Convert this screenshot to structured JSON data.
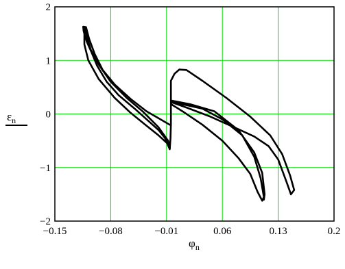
{
  "chart_data": {
    "type": "line",
    "title": "",
    "xlabel": {
      "main": "φ",
      "sub": "n"
    },
    "ylabel": {
      "main": "ε",
      "sub": "n"
    },
    "xlim": [
      -0.15,
      0.2
    ],
    "ylim": [
      -2,
      2
    ],
    "x_ticks": [
      -0.15,
      -0.08,
      -0.01,
      0.06,
      0.13,
      0.2
    ],
    "x_tick_labels": [
      "−0.15",
      "−0.08",
      "−0.01",
      "0.06",
      "0.13",
      "0.2"
    ],
    "y_ticks": [
      -2,
      -1,
      0,
      1,
      2
    ],
    "y_tick_labels": [
      "−2",
      "−1",
      "0",
      "1",
      "2"
    ],
    "grid": true,
    "legend": "none",
    "colors": {
      "grid": "#00dd00",
      "series": "#000000",
      "frame": "#000000"
    },
    "series": [
      {
        "values": [
          [
            -0.0045,
            0.62
          ],
          [
            -0.0045,
            -0.18
          ],
          [
            -0.005,
            -0.45
          ],
          [
            -0.006,
            -0.66
          ],
          [
            -0.012,
            -0.45
          ],
          [
            -0.02,
            -0.3
          ],
          [
            -0.035,
            -0.1
          ],
          [
            -0.05,
            0.1
          ],
          [
            -0.07,
            0.35
          ],
          [
            -0.085,
            0.6
          ],
          [
            -0.097,
            0.9
          ],
          [
            -0.104,
            1.15
          ],
          [
            -0.11,
            1.35
          ],
          [
            -0.114,
            1.55
          ],
          [
            -0.1145,
            1.63
          ],
          [
            -0.111,
            1.62
          ],
          [
            -0.107,
            1.4
          ],
          [
            -0.1,
            1.12
          ],
          [
            -0.09,
            0.82
          ],
          [
            -0.075,
            0.55
          ],
          [
            -0.055,
            0.28
          ],
          [
            -0.035,
            0.05
          ],
          [
            -0.02,
            -0.08
          ],
          [
            -0.006,
            -0.2
          ],
          [
            -0.0045,
            -0.21
          ],
          [
            -0.0045,
            0.62
          ],
          [
            0.0,
            0.75
          ],
          [
            0.006,
            0.83
          ],
          [
            0.015,
            0.82
          ],
          [
            0.035,
            0.62
          ],
          [
            0.065,
            0.3
          ],
          [
            0.095,
            -0.05
          ],
          [
            0.12,
            -0.4
          ],
          [
            0.135,
            -0.75
          ],
          [
            0.145,
            -1.15
          ],
          [
            0.15,
            -1.42
          ],
          [
            0.146,
            -1.5
          ],
          [
            0.14,
            -1.25
          ],
          [
            0.13,
            -0.85
          ],
          [
            0.118,
            -0.6
          ],
          [
            0.1,
            -0.42
          ],
          [
            0.075,
            -0.25
          ],
          [
            0.045,
            -0.05
          ],
          [
            0.015,
            0.12
          ],
          [
            -0.004,
            0.22
          ],
          [
            0.01,
            0.18
          ],
          [
            0.035,
            0.1
          ],
          [
            0.06,
            -0.1
          ],
          [
            0.085,
            -0.4
          ],
          [
            0.1,
            -0.8
          ],
          [
            0.108,
            -1.2
          ],
          [
            0.112,
            -1.55
          ],
          [
            0.11,
            -1.62
          ],
          [
            0.104,
            -1.45
          ],
          [
            0.095,
            -1.12
          ],
          [
            0.08,
            -0.82
          ],
          [
            0.06,
            -0.5
          ],
          [
            0.035,
            -0.2
          ],
          [
            0.01,
            0.05
          ],
          [
            -0.004,
            0.18
          ],
          [
            -0.004,
            0.25
          ],
          [
            0.02,
            0.18
          ],
          [
            0.05,
            0.05
          ],
          [
            0.08,
            -0.3
          ],
          [
            0.1,
            -0.72
          ],
          [
            0.11,
            -1.1
          ],
          [
            0.113,
            -1.5
          ],
          [
            0.112,
            -1.6
          ]
        ]
      },
      {
        "values": [
          [
            -0.113,
            1.5
          ],
          [
            -0.112,
            1.6
          ],
          [
            -0.11,
            1.45
          ],
          [
            -0.105,
            1.2
          ],
          [
            -0.095,
            0.92
          ],
          [
            -0.08,
            0.6
          ],
          [
            -0.06,
            0.3
          ],
          [
            -0.04,
            0.05
          ],
          [
            -0.02,
            -0.25
          ],
          [
            -0.008,
            -0.5
          ],
          [
            -0.006,
            -0.62
          ],
          [
            -0.009,
            -0.55
          ],
          [
            -0.02,
            -0.4
          ],
          [
            -0.035,
            -0.22
          ],
          [
            -0.055,
            0.02
          ],
          [
            -0.075,
            0.3
          ],
          [
            -0.095,
            0.65
          ],
          [
            -0.108,
            1.0
          ],
          [
            -0.113,
            1.3
          ],
          [
            -0.113,
            1.5
          ]
        ]
      }
    ]
  }
}
